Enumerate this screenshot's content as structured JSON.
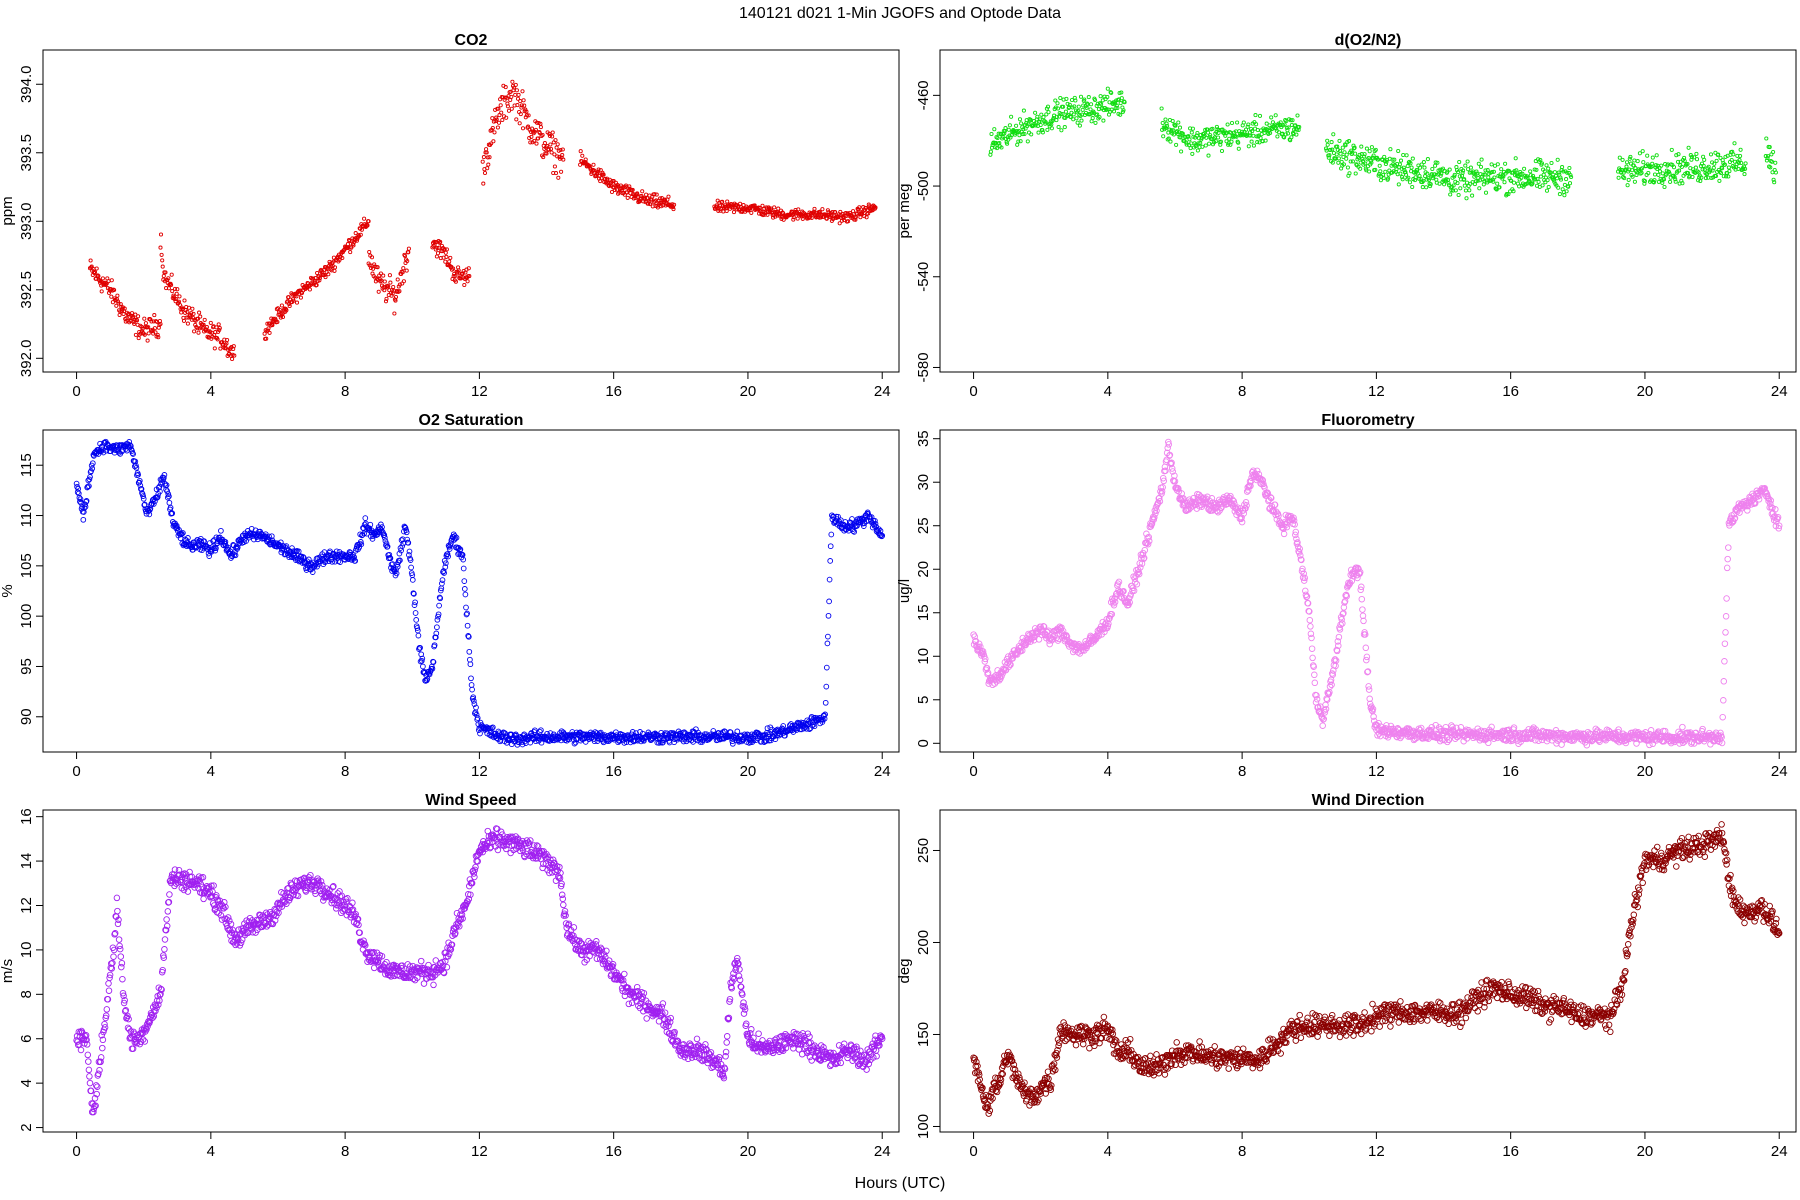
{
  "figure": {
    "title": "140121   d021   1-Min  JGOFS and Optode Data",
    "xlabel": "Hours (UTC)"
  },
  "chart_data": [
    {
      "type": "scatter",
      "title": "CO2",
      "ylabel": "ppm",
      "xlim": [
        -1,
        24.5
      ],
      "ylim": [
        391.9,
        394.25
      ],
      "xticks": [
        0,
        4,
        8,
        12,
        16,
        20,
        24
      ],
      "yticks": [
        392.0,
        392.5,
        393.0,
        393.5,
        394.0
      ],
      "ytick_labels": [
        "392.0",
        "392.5",
        "393.0",
        "393.5",
        "394.0"
      ],
      "color": "#e00000",
      "marker_radius": 1.6,
      "segments": [
        {
          "x": [
            0.4,
            1.0,
            1.5,
            2.0,
            2.5
          ],
          "y": [
            392.65,
            392.5,
            392.3,
            392.2,
            392.25
          ],
          "noise": 0.08
        },
        {
          "x": [
            2.5,
            2.6,
            3.2,
            3.8,
            4.3,
            4.7
          ],
          "y": [
            392.9,
            392.6,
            392.35,
            392.2,
            392.15,
            392.02
          ],
          "noise": 0.08
        },
        {
          "x": [
            5.6,
            6.5,
            7.5,
            8.2,
            8.7
          ],
          "y": [
            392.2,
            392.45,
            392.65,
            392.85,
            393.0
          ],
          "noise": 0.05
        },
        {
          "x": [
            8.7,
            9.0,
            9.5,
            9.9
          ],
          "y": [
            392.75,
            392.55,
            392.45,
            392.8
          ],
          "noise": 0.1
        },
        {
          "x": [
            10.6,
            11.0,
            11.3,
            11.7
          ],
          "y": [
            392.85,
            392.75,
            392.6,
            392.6
          ],
          "noise": 0.07
        },
        {
          "x": [
            12.1,
            12.6,
            13.0,
            13.5,
            14.0,
            14.5
          ],
          "y": [
            393.4,
            393.8,
            393.95,
            393.7,
            393.55,
            393.45
          ],
          "noise": 0.13
        },
        {
          "x": [
            15.0,
            15.5,
            16.0,
            16.5,
            17.0,
            17.8
          ],
          "y": [
            393.45,
            393.35,
            393.25,
            393.2,
            393.15,
            393.12
          ],
          "noise": 0.05
        },
        {
          "x": [
            19.0,
            20.0,
            21.0,
            22.0,
            23.0,
            23.8
          ],
          "y": [
            393.1,
            393.1,
            393.05,
            393.05,
            393.03,
            393.1
          ],
          "noise": 0.04
        }
      ]
    },
    {
      "type": "scatter",
      "title": "d(O2/N2)",
      "ylabel": "per meg",
      "xlim": [
        -1,
        24.5
      ],
      "ylim": [
        -582,
        -440
      ],
      "xticks": [
        0,
        4,
        8,
        12,
        16,
        20,
        24
      ],
      "yticks": [
        -580,
        -540,
        -500,
        -460
      ],
      "ytick_labels": [
        "-580",
        "-540",
        "-500",
        "-460"
      ],
      "color": "#11dd11",
      "marker_radius": 1.6,
      "segments": [
        {
          "x": [
            0.5,
            1.5,
            2.5,
            3.5,
            4.5
          ],
          "y": [
            -482,
            -474,
            -468,
            -466,
            -463
          ],
          "noise": 6
        },
        {
          "x": [
            5.6,
            6.5,
            7.5,
            8.5,
            9.7
          ],
          "y": [
            -472,
            -480,
            -478,
            -476,
            -474
          ],
          "noise": 6
        },
        {
          "x": [
            10.5,
            11.5,
            12.5,
            13.5,
            14.5,
            15.5,
            16.5,
            17.8
          ],
          "y": [
            -484,
            -488,
            -492,
            -494,
            -498,
            -496,
            -496,
            -496
          ],
          "noise": 7
        },
        {
          "x": [
            19.2,
            20.5,
            21.5,
            22.5,
            23.0
          ],
          "y": [
            -494,
            -492,
            -492,
            -490,
            -490
          ],
          "noise": 7
        },
        {
          "x": [
            23.6,
            23.9
          ],
          "y": [
            -484,
            -494
          ],
          "noise": 8
        }
      ]
    },
    {
      "type": "scatter",
      "title": "O2 Saturation",
      "ylabel": "%",
      "xlim": [
        -1,
        24.5
      ],
      "ylim": [
        86.5,
        118.5
      ],
      "xticks": [
        0,
        4,
        8,
        12,
        16,
        20,
        24
      ],
      "yticks": [
        90,
        95,
        100,
        105,
        110,
        115
      ],
      "ytick_labels": [
        "90",
        "95",
        "100",
        "105",
        "110",
        "115"
      ],
      "color": "#0000ee",
      "marker_radius": 2.4,
      "segments": [
        {
          "x": [
            0.0,
            0.2,
            0.5,
            0.8,
            1.2,
            1.6,
            1.9,
            2.1,
            2.4,
            2.6,
            2.9,
            3.3,
            3.8,
            4.0,
            4.3,
            4.6,
            5.0,
            5.5,
            6.0,
            6.5,
            7.0,
            7.5,
            8.0,
            8.3,
            8.6,
            8.9,
            9.1,
            9.3,
            9.5,
            9.8,
            10.0,
            10.2,
            10.4,
            10.6,
            10.9,
            11.2,
            11.5,
            11.8,
            12.0,
            12.3,
            12.6,
            13.0,
            14.0,
            15.0,
            16.0,
            17.0,
            18.0,
            19.0,
            20.0,
            20.5,
            21.0,
            21.5,
            22.0,
            22.3,
            22.5,
            22.8,
            23.2,
            23.6,
            24.0
          ],
          "y": [
            113,
            110,
            116,
            117,
            116.5,
            117,
            113,
            110,
            112,
            114,
            109,
            107,
            107,
            106.5,
            108,
            106,
            108,
            108,
            107,
            106,
            105,
            106,
            106,
            106,
            109,
            108,
            109,
            106,
            104,
            109,
            104,
            97,
            93.5,
            95,
            104,
            108,
            106,
            92,
            89,
            88.5,
            88,
            87.8,
            88,
            88,
            88,
            88,
            88,
            88,
            88,
            88,
            88.5,
            89,
            89.5,
            90,
            110,
            109,
            109,
            110,
            108
          ],
          "noise": 0.6
        }
      ]
    },
    {
      "type": "scatter",
      "title": "Fluorometry",
      "ylabel": "ug/l",
      "xlim": [
        -1,
        24.5
      ],
      "ylim": [
        -1,
        36
      ],
      "xticks": [
        0,
        4,
        8,
        12,
        16,
        20,
        24
      ],
      "yticks": [
        0,
        5,
        10,
        15,
        20,
        25,
        30,
        35
      ],
      "ytick_labels": [
        "0",
        "5",
        "10",
        "15",
        "20",
        "25",
        "30",
        "35"
      ],
      "color": "#ee82ee",
      "marker_radius": 2.8,
      "segments": [
        {
          "x": [
            0.0,
            0.3,
            0.5,
            0.8,
            1.2,
            1.6,
            2.0,
            2.3,
            2.6,
            3.0,
            3.3,
            3.6,
            4.0,
            4.3,
            4.6,
            5.0,
            5.3,
            5.6,
            5.8,
            6.0,
            6.3,
            6.8,
            7.2,
            7.6,
            8.0,
            8.3,
            8.6,
            8.9,
            9.2,
            9.5,
            9.8,
            10.0,
            10.2,
            10.4,
            10.6,
            10.8,
            11.0,
            11.2,
            11.5,
            11.8,
            12.0,
            13.0,
            14.0,
            15.0,
            16.0,
            17.0,
            18.0,
            19.0,
            20.0,
            21.0,
            22.0,
            22.3,
            22.5,
            22.8,
            23.2,
            23.6,
            24.0
          ],
          "y": [
            12,
            10,
            7,
            8,
            10,
            12,
            13,
            12,
            13,
            11,
            11,
            12,
            14,
            18,
            16,
            21,
            25,
            29,
            34,
            30,
            27,
            28,
            27,
            28,
            26,
            31,
            30,
            27,
            25,
            26,
            20,
            15,
            5,
            3,
            6,
            10,
            15,
            19,
            20,
            5,
            1.5,
            1.2,
            1.0,
            1.0,
            1.0,
            0.9,
            0.8,
            0.8,
            0.7,
            0.7,
            0.7,
            1.0,
            25,
            27,
            28,
            29,
            25
          ],
          "noise": 0.8
        }
      ]
    },
    {
      "type": "scatter",
      "title": "Wind Speed",
      "ylabel": "m/s",
      "xlim": [
        -1,
        24.5
      ],
      "ylim": [
        1.8,
        16.3
      ],
      "xticks": [
        0,
        4,
        8,
        12,
        16,
        20,
        24
      ],
      "yticks": [
        2,
        4,
        6,
        8,
        10,
        12,
        14,
        16
      ],
      "ytick_labels": [
        "2",
        "4",
        "6",
        "8",
        "10",
        "12",
        "14",
        "16"
      ],
      "color": "#a020f0",
      "marker_radius": 2.8,
      "segments": [
        {
          "x": [
            0.0,
            0.3,
            0.4,
            0.5,
            0.7,
            0.9,
            1.1,
            1.2,
            1.4,
            1.6,
            1.9,
            2.2,
            2.5,
            2.8,
            3.2,
            3.6,
            4.0,
            4.3,
            4.7,
            5.2,
            5.8,
            6.3,
            6.8,
            7.2,
            7.6,
            8.0,
            8.3,
            8.6,
            9.0,
            9.4,
            9.8,
            10.2,
            10.6,
            11.0,
            11.3,
            11.6,
            12.0,
            12.5,
            13.0,
            13.5,
            14.0,
            14.4,
            14.6,
            15.0,
            15.5,
            16.0,
            16.5,
            17.0,
            17.5,
            18.0,
            18.5,
            19.0,
            19.3,
            19.5,
            19.7,
            20.0,
            20.5,
            21.0,
            21.5,
            22.0,
            22.5,
            23.0,
            23.5,
            24.0
          ],
          "y": [
            6,
            6,
            4,
            2.6,
            5,
            7.5,
            10,
            12,
            8,
            6,
            6,
            7,
            8,
            13.2,
            13.2,
            13,
            12.5,
            12,
            10.5,
            11,
            11.5,
            12.5,
            13,
            13,
            12.5,
            12,
            11.5,
            10,
            9.5,
            9,
            9,
            9,
            9,
            9.5,
            11,
            12,
            14.5,
            15,
            14.8,
            14.5,
            14,
            13.5,
            11,
            10,
            10,
            9,
            8,
            7.5,
            7,
            5.5,
            5.5,
            5,
            4.5,
            8.5,
            9.5,
            6,
            5.5,
            5.8,
            6,
            5.5,
            5,
            5.5,
            5,
            6
          ],
          "noise": 0.45
        }
      ]
    },
    {
      "type": "scatter",
      "title": "Wind Direction",
      "ylabel": "deg",
      "xlim": [
        -1,
        24.5
      ],
      "ylim": [
        97,
        272
      ],
      "xticks": [
        0,
        4,
        8,
        12,
        16,
        20,
        24
      ],
      "yticks": [
        100,
        150,
        200,
        250
      ],
      "ytick_labels": [
        "100",
        "150",
        "200",
        "250"
      ],
      "color": "#8b0000",
      "marker_radius": 2.8,
      "segments": [
        {
          "x": [
            0.0,
            0.2,
            0.4,
            0.6,
            0.8,
            1.0,
            1.2,
            1.5,
            1.8,
            2.0,
            2.3,
            2.6,
            3.0,
            3.5,
            4.0,
            4.3,
            4.7,
            5.0,
            5.5,
            6.0,
            6.5,
            7.0,
            7.5,
            8.0,
            8.5,
            9.0,
            9.5,
            10.0,
            10.5,
            11.0,
            11.5,
            12.0,
            12.5,
            13.0,
            13.5,
            14.0,
            14.5,
            15.0,
            15.5,
            16.0,
            16.5,
            17.0,
            17.5,
            18.0,
            18.5,
            19.0,
            19.3,
            19.6,
            20.0,
            20.5,
            21.0,
            21.5,
            22.0,
            22.3,
            22.6,
            23.0,
            23.5,
            24.0
          ],
          "y": [
            138,
            125,
            110,
            120,
            125,
            140,
            130,
            118,
            115,
            122,
            125,
            153,
            150,
            150,
            153,
            140,
            140,
            132,
            132,
            140,
            140,
            138,
            137,
            137,
            136,
            145,
            153,
            155,
            155,
            155,
            155,
            160,
            162,
            162,
            162,
            162,
            162,
            170,
            175,
            172,
            170,
            165,
            165,
            160,
            160,
            160,
            175,
            210,
            245,
            245,
            250,
            252,
            255,
            258,
            225,
            215,
            220,
            205
          ],
          "noise": 6
        }
      ]
    }
  ]
}
